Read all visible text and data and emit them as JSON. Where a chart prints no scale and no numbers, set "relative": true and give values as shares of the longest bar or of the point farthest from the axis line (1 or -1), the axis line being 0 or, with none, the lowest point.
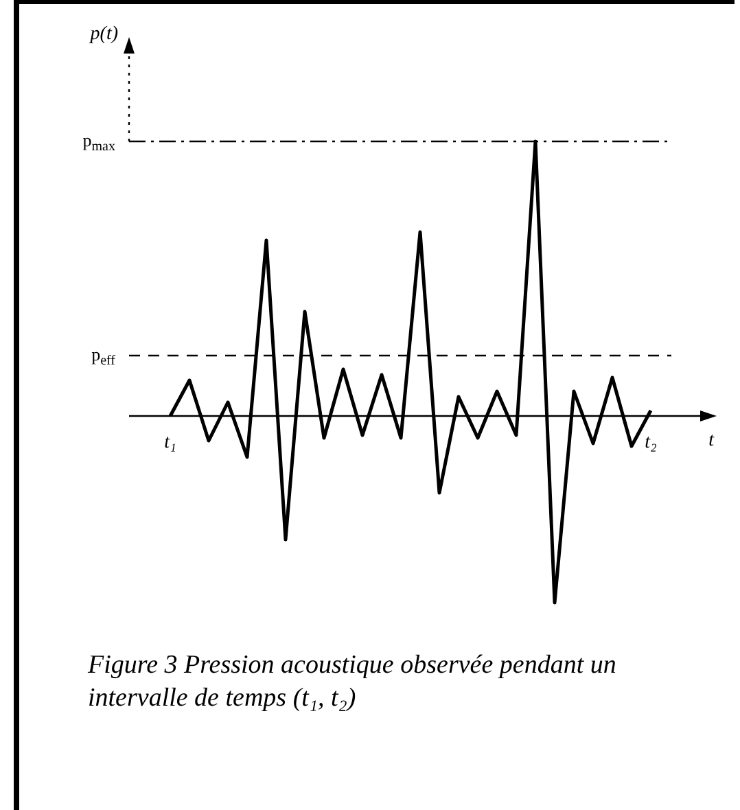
{
  "chart_data": {
    "type": "line",
    "relative": true,
    "title": "Figure 3  Pression acoustique observée pendant un intervalle de temps (t₁, t₂)",
    "annotations": [
      "p(t)",
      "t"
    ],
    "categories": [
      "t₁",
      null,
      null,
      null,
      null,
      null,
      null,
      null,
      null,
      null,
      null,
      null,
      null,
      null,
      null,
      null,
      null,
      null,
      null,
      null,
      null,
      null,
      null,
      null,
      null,
      "t₂"
    ],
    "series": [
      {
        "color": "#000000",
        "values": [
          0,
          0.13,
          -0.09,
          0.05,
          -0.15,
          0.64,
          -0.45,
          0.38,
          -0.08,
          0.17,
          -0.07,
          0.15,
          -0.08,
          0.67,
          -0.28,
          0.07,
          -0.08,
          0.09,
          -0.07,
          1,
          -0.68,
          0.09,
          -0.1,
          0.14,
          -0.11,
          0.02
        ]
      }
    ],
    "ref_lines": [
      {
        "axis": "y",
        "value": 1,
        "label": "p$_{max}$",
        "line_style": "dashdot"
      },
      {
        "axis": "y",
        "value": 0.22,
        "label": "p$_{eff}$",
        "line_style": "dashed"
      }
    ],
    "marker": "none",
    "line_style": "solid",
    "legend": false
  }
}
